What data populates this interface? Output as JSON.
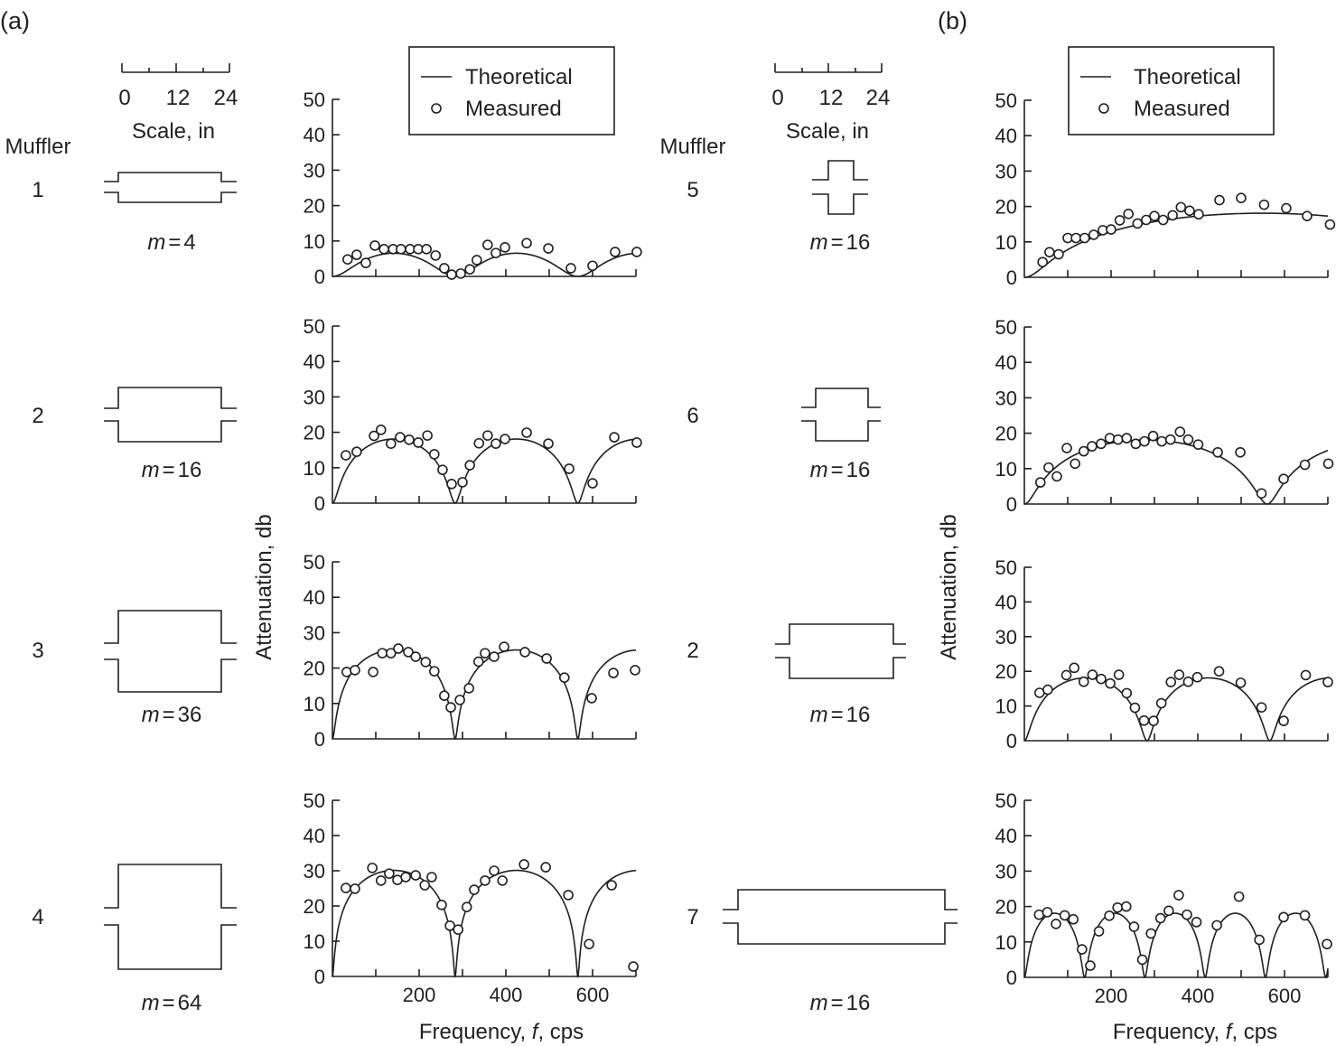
{
  "panel_labels": {
    "a": "(a)",
    "b": "(b)"
  },
  "muffler_heading": "Muffler",
  "scale": {
    "ticks": [
      "0",
      "12",
      "24"
    ],
    "label": "Scale, in"
  },
  "legend": {
    "theoretical": "Theoretical",
    "measured": "Measured"
  },
  "m_prefix": "m",
  "m_eq": "=",
  "x_axis": {
    "label_pre": "Frequency, ",
    "label_var": "f",
    "label_post": ", cps",
    "ticks": [
      "200",
      "400",
      "600"
    ]
  },
  "y_axis": {
    "label": "Attenuation, db",
    "ticks": [
      "0",
      "10",
      "20",
      "30",
      "40",
      "50"
    ]
  },
  "chart_data": [
    {
      "type": "line+scatter",
      "column": "a",
      "muffler": "1",
      "m": 4,
      "xlim": [
        0,
        700
      ],
      "ylim": [
        0,
        50
      ],
      "theoretical": {
        "m": 4,
        "null_spacing_cps": 283
      },
      "measured": [
        [
          35,
          4.8
        ],
        [
          56,
          6.1
        ],
        [
          77,
          3.8
        ],
        [
          98,
          8.7
        ],
        [
          119,
          7.7
        ],
        [
          140,
          7.7
        ],
        [
          158,
          7.7
        ],
        [
          179,
          7.7
        ],
        [
          198,
          7.7
        ],
        [
          217,
          7.7
        ],
        [
          238,
          5.9
        ],
        [
          258,
          2.3
        ],
        [
          275,
          0.5
        ],
        [
          296,
          0.8
        ],
        [
          317,
          2
        ],
        [
          333,
          4.6
        ],
        [
          358,
          8.9
        ],
        [
          377,
          6.6
        ],
        [
          398,
          8.2
        ],
        [
          448,
          9.4
        ],
        [
          498,
          7.9
        ],
        [
          550,
          2.3
        ],
        [
          600,
          3
        ],
        [
          652,
          6.9
        ],
        [
          702,
          6.9
        ]
      ]
    },
    {
      "type": "line+scatter",
      "column": "a",
      "muffler": "2",
      "m": 16,
      "xlim": [
        0,
        700
      ],
      "ylim": [
        0,
        50
      ],
      "theoretical": {
        "m": 16,
        "null_spacing_cps": 283
      },
      "measured": [
        [
          31,
          13.5
        ],
        [
          56,
          14.5
        ],
        [
          96,
          19
        ],
        [
          112,
          20.7
        ],
        [
          135,
          16.8
        ],
        [
          156,
          18.6
        ],
        [
          177,
          17.9
        ],
        [
          198,
          17.1
        ],
        [
          219,
          19.1
        ],
        [
          235,
          13.8
        ],
        [
          254,
          9.4
        ],
        [
          275,
          5.4
        ],
        [
          300,
          5.9
        ],
        [
          317,
          10.7
        ],
        [
          338,
          16.9
        ],
        [
          358,
          19.1
        ],
        [
          377,
          16.8
        ],
        [
          398,
          18.1
        ],
        [
          448,
          19.9
        ],
        [
          498,
          16.8
        ],
        [
          546,
          9.7
        ],
        [
          600,
          5.6
        ],
        [
          650,
          18.6
        ],
        [
          702,
          17.1
        ]
      ]
    },
    {
      "type": "line+scatter",
      "column": "a",
      "muffler": "3",
      "m": 36,
      "xlim": [
        0,
        700
      ],
      "ylim": [
        0,
        50
      ],
      "theoretical": {
        "m": 36,
        "null_spacing_cps": 283
      },
      "measured": [
        [
          33,
          18.9
        ],
        [
          52,
          19.4
        ],
        [
          94,
          18.9
        ],
        [
          115,
          24.2
        ],
        [
          135,
          24.2
        ],
        [
          152,
          25.5
        ],
        [
          175,
          24.5
        ],
        [
          192,
          23.2
        ],
        [
          215,
          21.7
        ],
        [
          235,
          19.1
        ],
        [
          258,
          12.2
        ],
        [
          273,
          8.9
        ],
        [
          294,
          11
        ],
        [
          315,
          14.3
        ],
        [
          337,
          21.8
        ],
        [
          352,
          24.2
        ],
        [
          373,
          23.2
        ],
        [
          396,
          26
        ],
        [
          444,
          24.5
        ],
        [
          494,
          22.7
        ],
        [
          535,
          17.3
        ],
        [
          598,
          11.5
        ],
        [
          648,
          18.6
        ],
        [
          698,
          19.4
        ]
      ]
    },
    {
      "type": "line+scatter",
      "column": "a",
      "muffler": "4",
      "m": 64,
      "xlim": [
        0,
        700
      ],
      "ylim": [
        0,
        50
      ],
      "theoretical": {
        "m": 64,
        "null_spacing_cps": 283
      },
      "measured": [
        [
          31,
          25.1
        ],
        [
          52,
          24.9
        ],
        [
          92,
          30.8
        ],
        [
          112,
          27.2
        ],
        [
          131,
          29.2
        ],
        [
          150,
          27.4
        ],
        [
          169,
          28.2
        ],
        [
          192,
          28.7
        ],
        [
          213,
          25.9
        ],
        [
          229,
          28.2
        ],
        [
          252,
          20.3
        ],
        [
          271,
          14.4
        ],
        [
          290,
          13.3
        ],
        [
          310,
          19.7
        ],
        [
          327,
          24.6
        ],
        [
          352,
          27.2
        ],
        [
          373,
          30
        ],
        [
          392,
          27.2
        ],
        [
          442,
          31.8
        ],
        [
          492,
          31
        ],
        [
          544,
          23.1
        ],
        [
          592,
          9.2
        ],
        [
          644,
          25.9
        ],
        [
          694,
          2.8
        ]
      ]
    },
    {
      "type": "line+scatter",
      "column": "b",
      "muffler": "5",
      "m": 16,
      "xlim": [
        0,
        700
      ],
      "ylim": [
        0,
        50
      ],
      "theoretical": {
        "m": 16,
        "null_spacing_cps": 1100
      },
      "measured": [
        [
          42,
          4.3
        ],
        [
          58,
          7.1
        ],
        [
          79,
          6.5
        ],
        [
          100,
          11.1
        ],
        [
          119,
          11.1
        ],
        [
          139,
          11.1
        ],
        [
          160,
          12
        ],
        [
          181,
          13.3
        ],
        [
          200,
          13.5
        ],
        [
          220,
          16.1
        ],
        [
          240,
          17.9
        ],
        [
          261,
          15.2
        ],
        [
          281,
          16.2
        ],
        [
          300,
          17.3
        ],
        [
          320,
          16.2
        ],
        [
          342,
          17.5
        ],
        [
          361,
          19.8
        ],
        [
          381,
          18.8
        ],
        [
          402,
          17.8
        ],
        [
          450,
          21.8
        ],
        [
          500,
          22.4
        ],
        [
          553,
          20.5
        ],
        [
          604,
          19.5
        ],
        [
          652,
          17.3
        ],
        [
          705,
          14.9
        ]
      ]
    },
    {
      "type": "line+scatter",
      "column": "b",
      "muffler": "6",
      "m": 16,
      "xlim": [
        0,
        700
      ],
      "ylim": [
        0,
        50
      ],
      "theoretical": {
        "m": 16,
        "null_spacing_cps": 560
      },
      "measured": [
        [
          37,
          6.1
        ],
        [
          56,
          10.3
        ],
        [
          75,
          7.8
        ],
        [
          98,
          15.8
        ],
        [
          117,
          11.4
        ],
        [
          137,
          14.9
        ],
        [
          156,
          16.3
        ],
        [
          177,
          17
        ],
        [
          197,
          18.6
        ],
        [
          216,
          18.2
        ],
        [
          236,
          18.6
        ],
        [
          257,
          17
        ],
        [
          277,
          17.7
        ],
        [
          297,
          19.2
        ],
        [
          317,
          17.7
        ],
        [
          337,
          18.2
        ],
        [
          359,
          20.4
        ],
        [
          378,
          18.2
        ],
        [
          401,
          16.8
        ],
        [
          446,
          14.6
        ],
        [
          498,
          14.6
        ],
        [
          547,
          3
        ],
        [
          598,
          7.1
        ],
        [
          647,
          11.1
        ],
        [
          701,
          11.4
        ]
      ]
    },
    {
      "type": "line+scatter",
      "column": "b",
      "muffler": "2",
      "m": 16,
      "xlim": [
        0,
        700
      ],
      "ylim": [
        0,
        50
      ],
      "theoretical": {
        "m": 16,
        "null_spacing_cps": 283
      },
      "measured": [
        [
          35,
          13.8
        ],
        [
          54,
          14.7
        ],
        [
          97,
          18.9
        ],
        [
          115,
          21
        ],
        [
          137,
          17
        ],
        [
          157,
          19
        ],
        [
          177,
          17.8
        ],
        [
          198,
          16.5
        ],
        [
          218,
          19
        ],
        [
          236,
          13.7
        ],
        [
          255,
          9.5
        ],
        [
          276,
          5.8
        ],
        [
          298,
          5.7
        ],
        [
          316,
          10.8
        ],
        [
          338,
          16.9
        ],
        [
          357,
          19
        ],
        [
          378,
          17
        ],
        [
          399,
          18.3
        ],
        [
          449,
          20
        ],
        [
          499,
          16.7
        ],
        [
          547,
          9.6
        ],
        [
          598,
          5.7
        ],
        [
          649,
          18.9
        ],
        [
          700,
          16.9
        ]
      ]
    },
    {
      "type": "line+scatter",
      "column": "b",
      "muffler": "7",
      "m": 16,
      "xlim": [
        0,
        700
      ],
      "ylim": [
        0,
        50
      ],
      "theoretical": {
        "m": 16,
        "null_spacing_cps": 139
      },
      "measured": [
        [
          34,
          17.7
        ],
        [
          53,
          18.4
        ],
        [
          73,
          15.1
        ],
        [
          93,
          17.5
        ],
        [
          113,
          16.4
        ],
        [
          133,
          7.9
        ],
        [
          152,
          3.3
        ],
        [
          172,
          13
        ],
        [
          196,
          17.4
        ],
        [
          215,
          19.7
        ],
        [
          235,
          20
        ],
        [
          253,
          14.3
        ],
        [
          272,
          5
        ],
        [
          292,
          12.4
        ],
        [
          314,
          16.7
        ],
        [
          333,
          18.8
        ],
        [
          356,
          23.2
        ],
        [
          375,
          17.7
        ],
        [
          397,
          15.6
        ],
        [
          444,
          14.7
        ],
        [
          495,
          22.8
        ],
        [
          542,
          10.6
        ],
        [
          598,
          17
        ],
        [
          647,
          17.5
        ],
        [
          698,
          9.4
        ]
      ]
    }
  ]
}
